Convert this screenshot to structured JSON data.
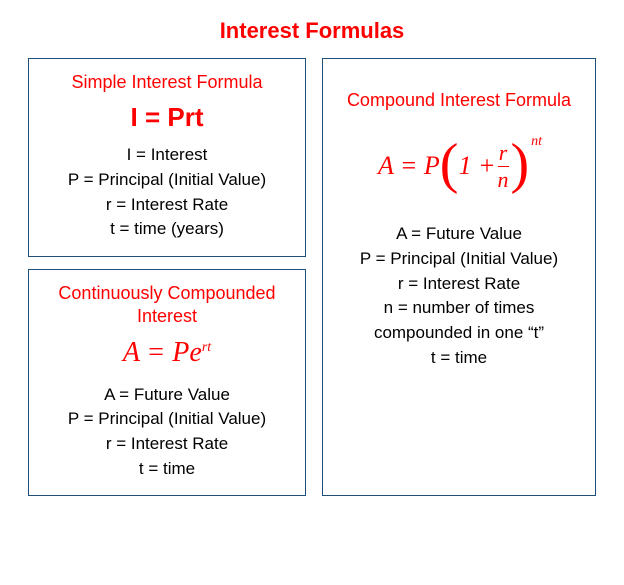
{
  "colors": {
    "accent": "#ff0000",
    "border": "#1f4e79",
    "text": "#000000",
    "background": "#ffffff"
  },
  "title": "Interest Formulas",
  "simple": {
    "title": "Simple Interest Formula",
    "formula": "I = Prt",
    "defs": [
      "I = Interest",
      "P = Principal (Initial Value)",
      "r = Interest Rate",
      "t = time (years)"
    ]
  },
  "continuous": {
    "title": "Continuously Compounded Interest",
    "formula_base": "A = Pe",
    "formula_sup": "rt",
    "defs": [
      "A = Future Value",
      "P = Principal (Initial Value)",
      "r = Interest Rate",
      "t = time"
    ]
  },
  "compound": {
    "title": "Compound Interest Formula",
    "formula_lhs": "A = P",
    "paren_open": "(",
    "one_plus": "1 + ",
    "frac_num": "r",
    "frac_den": "n",
    "paren_close": ")",
    "exponent": "nt",
    "defs": [
      "A = Future  Value",
      "P = Principal (Initial Value)",
      "r = Interest Rate",
      "n = number of times",
      "compounded in one “t”",
      "t = time"
    ]
  }
}
